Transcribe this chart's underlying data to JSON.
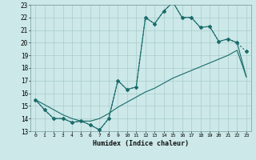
{
  "xlabel": "Humidex (Indice chaleur)",
  "x_hours": [
    0,
    1,
    2,
    3,
    4,
    5,
    6,
    7,
    8,
    9,
    10,
    11,
    12,
    13,
    14,
    15,
    16,
    17,
    18,
    19,
    20,
    21,
    22,
    23
  ],
  "line1_y": [
    15.5,
    14.7,
    14.0,
    14.0,
    13.7,
    13.8,
    13.5,
    13.1,
    14.0,
    17.0,
    16.3,
    16.5,
    22.0,
    21.5,
    22.5,
    23.2,
    22.0,
    22.0,
    21.2,
    21.3,
    20.1,
    20.3,
    20.0,
    19.3
  ],
  "line2_y": [
    15.5,
    14.7,
    14.0,
    14.0,
    13.7,
    13.8,
    13.5,
    13.1,
    14.0,
    17.0,
    16.3,
    16.5,
    22.0,
    21.5,
    22.5,
    23.2,
    22.0,
    22.0,
    21.2,
    21.3,
    20.1,
    20.3,
    20.0,
    17.3
  ],
  "line3_y": [
    15.5,
    15.1,
    14.7,
    14.3,
    14.0,
    13.8,
    13.8,
    14.0,
    14.4,
    14.9,
    15.3,
    15.7,
    16.1,
    16.4,
    16.8,
    17.2,
    17.5,
    17.8,
    18.1,
    18.4,
    18.7,
    19.0,
    19.4,
    17.3
  ],
  "ylim": [
    13,
    23
  ],
  "yticks": [
    13,
    14,
    15,
    16,
    17,
    18,
    19,
    20,
    21,
    22,
    23
  ],
  "bg_color": "#cce8e8",
  "grid_color": "#aacccc",
  "line_color": "#1a6b6b",
  "marker": "D",
  "marker_size": 2.0,
  "lw": 0.8
}
